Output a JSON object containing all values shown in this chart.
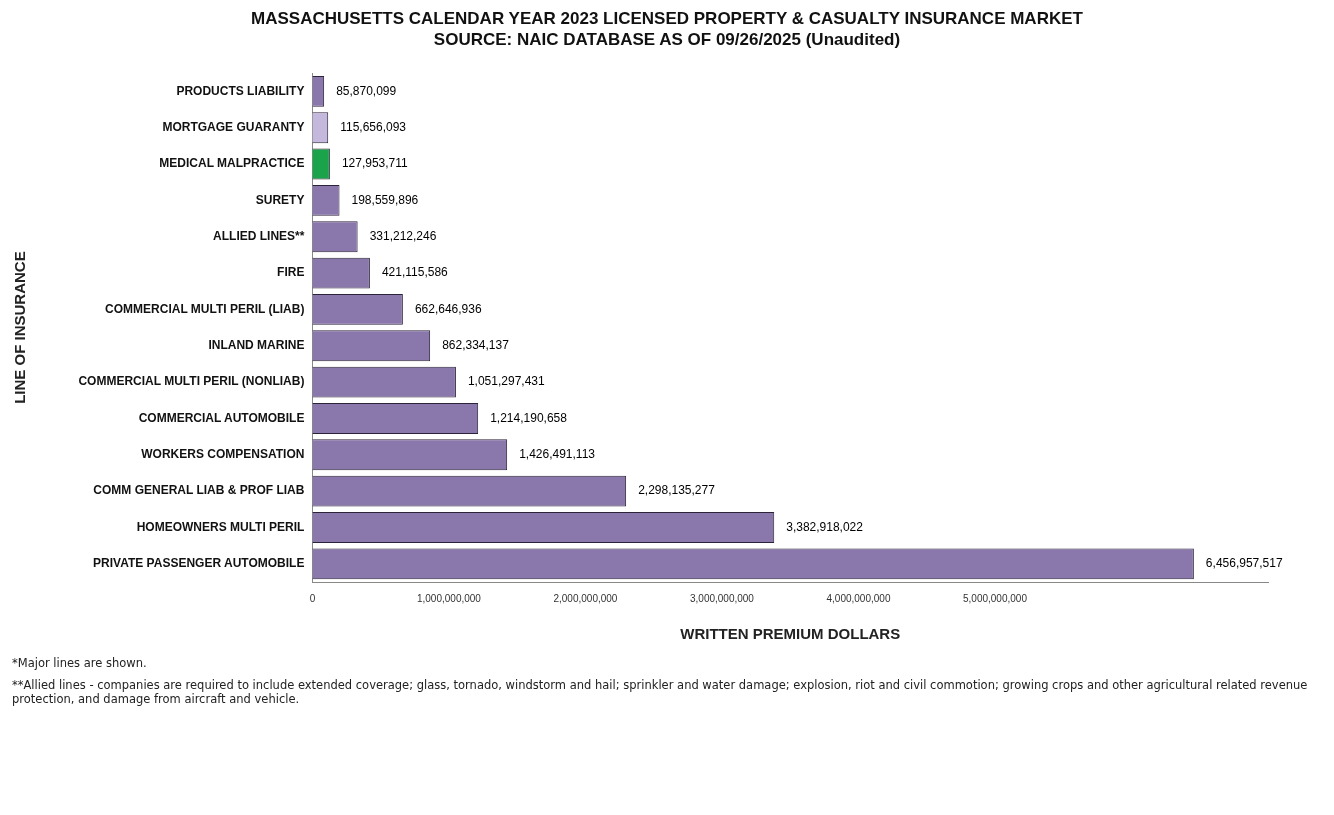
{
  "chart_data": {
    "type": "bar",
    "orientation": "horizontal",
    "title": "MASSACHUSETTS CALENDAR YEAR 2023 LICENSED PROPERTY & CASUALTY INSURANCE MARKET",
    "subtitle": "SOURCE: NAIC DATABASE AS OF 09/26/2025 (Unaudited)",
    "xlabel": "WRITTEN PREMIUM DOLLARS",
    "ylabel": "LINE OF INSURANCE",
    "categories": [
      "PRODUCTS LIABILITY",
      "MORTGAGE GUARANTY",
      "MEDICAL MALPRACTICE",
      "SURETY",
      "ALLIED LINES**",
      "FIRE",
      "COMMERCIAL MULTI PERIL (LIAB)",
      "INLAND MARINE",
      "COMMERCIAL MULTI PERIL (NONLIAB)",
      "COMMERCIAL AUTOMOBILE",
      "WORKERS COMPENSATION",
      "COMM GENERAL LIAB & PROF LIAB",
      "HOMEOWNERS MULTI PERIL",
      "PRIVATE PASSENGER AUTOMOBILE"
    ],
    "values": [
      85870099,
      115656093,
      127953711,
      198559896,
      331212246,
      421115586,
      662646936,
      862334137,
      1051297431,
      1214190658,
      1426491113,
      2298135277,
      3382918022,
      6456957517
    ],
    "colors": [
      "#8a78ad",
      "#c4b8dc",
      "#1aa34a",
      "#8a78ad",
      "#8a78ad",
      "#8a78ad",
      "#8a78ad",
      "#8a78ad",
      "#8a78ad",
      "#8a78ad",
      "#8a78ad",
      "#8a78ad",
      "#8a78ad",
      "#8a78ad"
    ],
    "xlim": [
      0,
      7000000000
    ],
    "xticks": [
      {
        "value": 0,
        "label": "0"
      },
      {
        "value": 1000000000,
        "label": "1,000,000,000"
      },
      {
        "value": 2000000000,
        "label": "2,000,000,000"
      },
      {
        "value": 3000000000,
        "label": "3,000,000,000"
      },
      {
        "value": 4000000000,
        "label": "4,000,000,000"
      },
      {
        "value": 5000000000,
        "label": "5,000,000,000"
      }
    ],
    "value_labels": [
      "85,870,099",
      "115,656,093",
      "127,953,711",
      "198,559,896",
      "331,212,246",
      "421,115,586",
      "662,646,936",
      "862,334,137",
      "1,051,297,431",
      "1,214,190,658",
      "1,426,491,113",
      "2,298,135,277",
      "3,382,918,022",
      "6,456,957,517"
    ],
    "grid": false,
    "legend": false,
    "annotations": [
      "*Major lines are shown.",
      "**Allied lines - companies are required to include extended coverage; glass, tornado, windstorm and hail; sprinkler and water damage; explosion, riot and civil commotion; growing crops and other agricultural related revenue protection, and damage from aircraft and vehicle."
    ]
  }
}
